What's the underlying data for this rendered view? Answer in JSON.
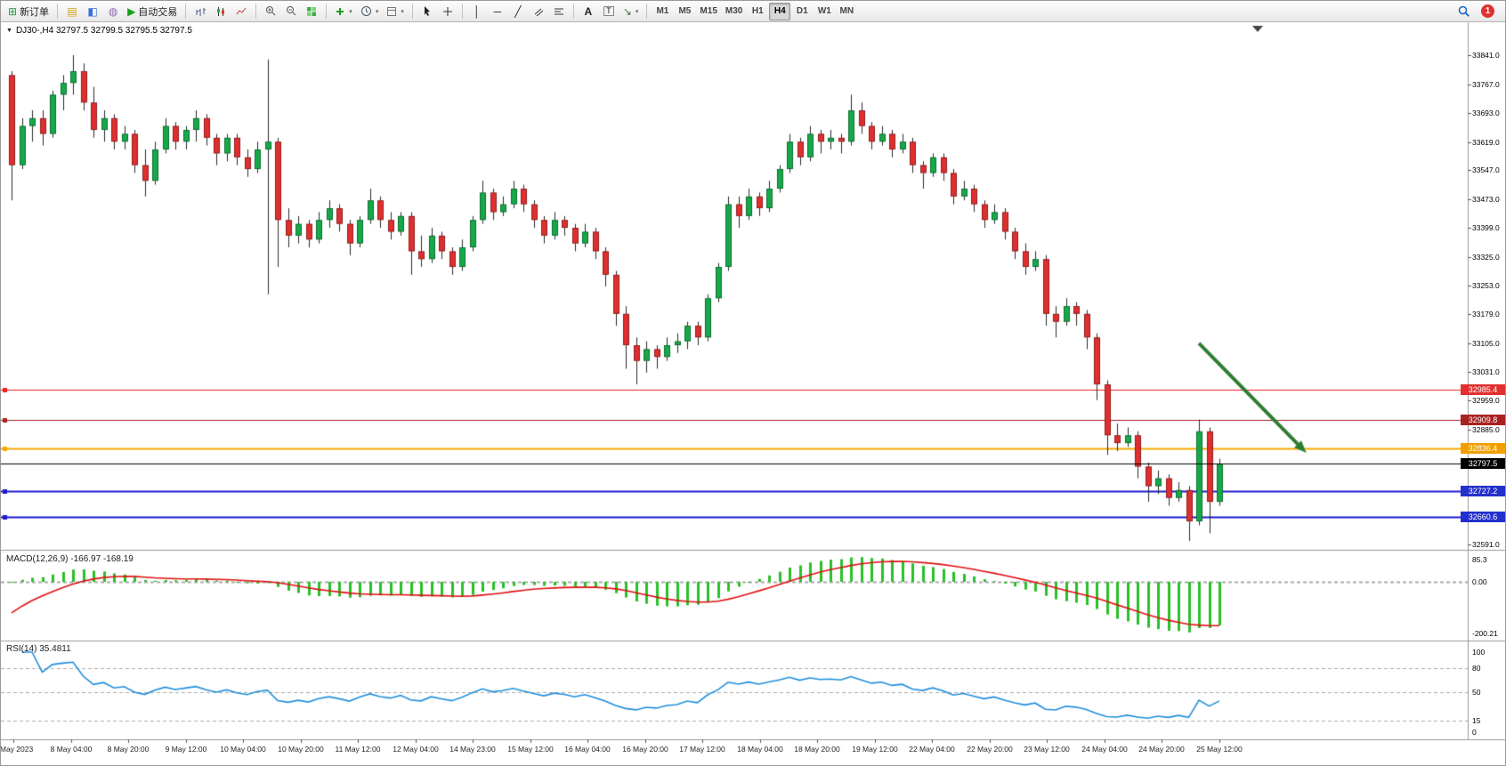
{
  "toolbar": {
    "new_order_label": "新订单",
    "auto_trading_label": "自动交易",
    "timeframes": [
      "M1",
      "M5",
      "M15",
      "M30",
      "H1",
      "H4",
      "D1",
      "W1",
      "MN"
    ],
    "active_timeframe": "H4",
    "notification_badge": "1"
  },
  "chart": {
    "header": "DJ30-,H4 32797.5 32799.5 32795.5 32797.5"
  },
  "chart_data": {
    "type": "candlestick",
    "symbol": "DJ30-",
    "timeframe": "H4",
    "ohlc_readout": {
      "open": 32797.5,
      "high": 32799.5,
      "low": 32795.5,
      "close": 32797.5
    },
    "price_range": [
      32591,
      33841
    ],
    "y_ticks": [
      33841.0,
      33767.0,
      33693.0,
      33619.0,
      33547.0,
      33473.0,
      33399.0,
      33325.0,
      33253.0,
      33179.0,
      33105.0,
      33031.0,
      32959.0,
      32885.0,
      32591.0
    ],
    "x_labels": [
      "5 May 2023",
      "8 May 04:00",
      "8 May 20:00",
      "9 May 12:00",
      "10 May 04:00",
      "10 May 20:00",
      "11 May 12:00",
      "12 May 04:00",
      "14 May 23:00",
      "15 May 12:00",
      "16 May 04:00",
      "16 May 20:00",
      "17 May 12:00",
      "18 May 04:00",
      "18 May 20:00",
      "19 May 12:00",
      "22 May 04:00",
      "22 May 20:00",
      "23 May 12:00",
      "24 May 04:00",
      "24 May 20:00",
      "25 May 12:00"
    ],
    "bull_color": "#16a94a",
    "bear_color": "#e02f2f",
    "wick_color": "#2a2a2a",
    "candles": [
      [
        33790,
        33800,
        33470,
        33560
      ],
      [
        33560,
        33680,
        33550,
        33660
      ],
      [
        33660,
        33700,
        33620,
        33680
      ],
      [
        33680,
        33700,
        33610,
        33640
      ],
      [
        33640,
        33750,
        33630,
        33740
      ],
      [
        33740,
        33790,
        33700,
        33770
      ],
      [
        33770,
        33841,
        33740,
        33800
      ],
      [
        33800,
        33820,
        33700,
        33720
      ],
      [
        33720,
        33760,
        33630,
        33650
      ],
      [
        33650,
        33700,
        33620,
        33680
      ],
      [
        33680,
        33690,
        33600,
        33620
      ],
      [
        33620,
        33660,
        33600,
        33640
      ],
      [
        33640,
        33650,
        33540,
        33560
      ],
      [
        33560,
        33600,
        33480,
        33520
      ],
      [
        33520,
        33620,
        33510,
        33600
      ],
      [
        33600,
        33680,
        33590,
        33660
      ],
      [
        33660,
        33670,
        33600,
        33620
      ],
      [
        33620,
        33660,
        33600,
        33650
      ],
      [
        33650,
        33700,
        33620,
        33680
      ],
      [
        33680,
        33690,
        33610,
        33630
      ],
      [
        33630,
        33640,
        33560,
        33590
      ],
      [
        33590,
        33640,
        33570,
        33630
      ],
      [
        33630,
        33640,
        33560,
        33580
      ],
      [
        33580,
        33600,
        33530,
        33550
      ],
      [
        33550,
        33620,
        33540,
        33600
      ],
      [
        33600,
        33830,
        33230,
        33620
      ],
      [
        33620,
        33630,
        33300,
        33420
      ],
      [
        33420,
        33450,
        33350,
        33380
      ],
      [
        33380,
        33430,
        33360,
        33410
      ],
      [
        33410,
        33420,
        33350,
        33370
      ],
      [
        33370,
        33440,
        33360,
        33420
      ],
      [
        33420,
        33470,
        33400,
        33450
      ],
      [
        33450,
        33460,
        33390,
        33410
      ],
      [
        33410,
        33420,
        33330,
        33360
      ],
      [
        33360,
        33430,
        33350,
        33420
      ],
      [
        33420,
        33500,
        33410,
        33470
      ],
      [
        33470,
        33480,
        33400,
        33420
      ],
      [
        33420,
        33440,
        33370,
        33390
      ],
      [
        33390,
        33440,
        33380,
        33430
      ],
      [
        33430,
        33440,
        33280,
        33340
      ],
      [
        33340,
        33380,
        33300,
        33320
      ],
      [
        33320,
        33400,
        33310,
        33380
      ],
      [
        33380,
        33390,
        33320,
        33340
      ],
      [
        33340,
        33350,
        33280,
        33300
      ],
      [
        33300,
        33370,
        33290,
        33350
      ],
      [
        33350,
        33430,
        33340,
        33420
      ],
      [
        33420,
        33520,
        33410,
        33490
      ],
      [
        33490,
        33500,
        33420,
        33440
      ],
      [
        33440,
        33480,
        33430,
        33460
      ],
      [
        33460,
        33520,
        33450,
        33500
      ],
      [
        33500,
        33510,
        33440,
        33460
      ],
      [
        33460,
        33470,
        33400,
        33420
      ],
      [
        33420,
        33430,
        33360,
        33380
      ],
      [
        33380,
        33440,
        33370,
        33420
      ],
      [
        33420,
        33430,
        33380,
        33400
      ],
      [
        33400,
        33410,
        33340,
        33360
      ],
      [
        33360,
        33410,
        33350,
        33390
      ],
      [
        33390,
        33400,
        33320,
        33340
      ],
      [
        33340,
        33350,
        33250,
        33280
      ],
      [
        33280,
        33290,
        33150,
        33180
      ],
      [
        33180,
        33200,
        33040,
        33100
      ],
      [
        33100,
        33120,
        33000,
        33060
      ],
      [
        33060,
        33110,
        33030,
        33090
      ],
      [
        33090,
        33100,
        33040,
        33070
      ],
      [
        33070,
        33120,
        33060,
        33100
      ],
      [
        33100,
        33130,
        33080,
        33110
      ],
      [
        33110,
        33160,
        33090,
        33150
      ],
      [
        33150,
        33160,
        33100,
        33120
      ],
      [
        33120,
        33230,
        33110,
        33220
      ],
      [
        33220,
        33310,
        33210,
        33300
      ],
      [
        33300,
        33480,
        33290,
        33460
      ],
      [
        33460,
        33480,
        33400,
        33430
      ],
      [
        33430,
        33500,
        33420,
        33480
      ],
      [
        33480,
        33490,
        33430,
        33450
      ],
      [
        33450,
        33520,
        33440,
        33500
      ],
      [
        33500,
        33560,
        33490,
        33550
      ],
      [
        33550,
        33640,
        33540,
        33620
      ],
      [
        33620,
        33630,
        33560,
        33580
      ],
      [
        33580,
        33660,
        33570,
        33640
      ],
      [
        33640,
        33650,
        33590,
        33620
      ],
      [
        33620,
        33650,
        33600,
        33630
      ],
      [
        33630,
        33640,
        33590,
        33620
      ],
      [
        33620,
        33740,
        33610,
        33700
      ],
      [
        33700,
        33720,
        33640,
        33660
      ],
      [
        33660,
        33670,
        33600,
        33620
      ],
      [
        33620,
        33660,
        33610,
        33640
      ],
      [
        33640,
        33650,
        33580,
        33600
      ],
      [
        33600,
        33640,
        33590,
        33620
      ],
      [
        33620,
        33630,
        33540,
        33560
      ],
      [
        33560,
        33570,
        33500,
        33540
      ],
      [
        33540,
        33590,
        33530,
        33580
      ],
      [
        33580,
        33590,
        33520,
        33540
      ],
      [
        33540,
        33550,
        33460,
        33480
      ],
      [
        33480,
        33520,
        33470,
        33500
      ],
      [
        33500,
        33510,
        33440,
        33460
      ],
      [
        33460,
        33470,
        33400,
        33420
      ],
      [
        33420,
        33460,
        33410,
        33440
      ],
      [
        33440,
        33450,
        33370,
        33390
      ],
      [
        33390,
        33400,
        33320,
        33340
      ],
      [
        33340,
        33360,
        33280,
        33300
      ],
      [
        33300,
        33340,
        33290,
        33320
      ],
      [
        33320,
        33330,
        33150,
        33180
      ],
      [
        33180,
        33200,
        33120,
        33160
      ],
      [
        33160,
        33220,
        33150,
        33200
      ],
      [
        33200,
        33210,
        33150,
        33180
      ],
      [
        33180,
        33190,
        33090,
        33120
      ],
      [
        33120,
        33130,
        32960,
        33000
      ],
      [
        33000,
        33010,
        32820,
        32870
      ],
      [
        32870,
        32900,
        32830,
        32850
      ],
      [
        32850,
        32890,
        32840,
        32870
      ],
      [
        32870,
        32880,
        32760,
        32790
      ],
      [
        32790,
        32800,
        32700,
        32740
      ],
      [
        32740,
        32780,
        32720,
        32760
      ],
      [
        32760,
        32770,
        32690,
        32710
      ],
      [
        32710,
        32750,
        32700,
        32730
      ],
      [
        32730,
        32740,
        32600,
        32650
      ],
      [
        32650,
        32910,
        32640,
        32880
      ],
      [
        32880,
        32890,
        32620,
        32700
      ],
      [
        32700,
        32810,
        32690,
        32797.5
      ]
    ],
    "levels": [
      {
        "price": 32985.4,
        "label": "32985.4",
        "line": "#f02020",
        "tag": "#e23030",
        "width": 1
      },
      {
        "price": 32909.8,
        "label": "32909.8",
        "line": "#a82222",
        "tag": "#a82222",
        "width": 1
      },
      {
        "price": 32836.4,
        "label": "32836.4",
        "line": "#f5a800",
        "tag": "#f0a000",
        "width": 2
      },
      {
        "price": 32727.2,
        "label": "32727.2",
        "line": "#1a1ad0",
        "tag": "#2230cc",
        "width": 2
      },
      {
        "price": 32660.6,
        "label": "32660.6",
        "line": "#1a1ad0",
        "tag": "#2230cc",
        "width": 2
      }
    ],
    "current_price": {
      "price": 32797.5,
      "label": "32797.5",
      "line": "#000000",
      "tag": "#000000"
    },
    "arrow": {
      "color": "#2e7d32",
      "direction": "down-right",
      "start": {
        "bar": 116,
        "price": 33105
      },
      "end": {
        "bar": 126.5,
        "price": 32825
      }
    },
    "indicators": {
      "macd": {
        "label": "MACD(12,26,9) -166.97 -168.19",
        "fast": 12,
        "slow": 26,
        "signal": 9,
        "value": -166.97,
        "signal_value": -168.19,
        "scale": [
          {
            "v": 85.3,
            "t": "85.3"
          },
          {
            "v": 0,
            "t": "0.00"
          },
          {
            "v": -200.21,
            "t": "-200.21"
          }
        ],
        "range": [
          -210,
          100
        ],
        "histogram_color": "#28c028",
        "signal_color": "#e01010"
      },
      "rsi": {
        "label": "RSI(14) 35.4811",
        "period": 14,
        "value": 35.4811,
        "scale": [
          {
            "v": 100,
            "t": "100"
          },
          {
            "v": 80,
            "t": "80"
          },
          {
            "v": 50,
            "t": "50"
          },
          {
            "v": 15,
            "t": "15"
          },
          {
            "v": 0,
            "t": "0"
          }
        ],
        "levels": [
          80,
          50,
          15
        ],
        "line_color": "#1f8fdd",
        "range": [
          0,
          100
        ]
      }
    }
  }
}
